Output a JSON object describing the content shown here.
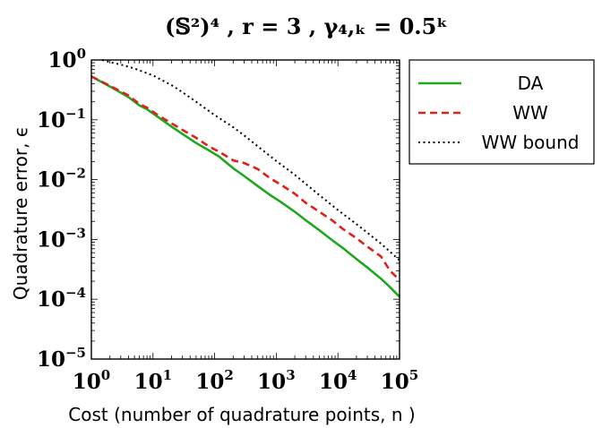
{
  "chart_data": {
    "type": "line",
    "title": "(𝕊²)⁴ , r = 3 , γ₄,ₖ = 0.5ᵏ",
    "xlabel": "Cost (number of quadrature points, n )",
    "ylabel": "Quadrature error, ϵ",
    "xscale": "log",
    "yscale": "log",
    "xlim": [
      1,
      100000
    ],
    "ylim": [
      1e-05,
      1
    ],
    "x_ticks": [
      {
        "value": 1,
        "label_base": "10",
        "label_exp": "0"
      },
      {
        "value": 10,
        "label_base": "10",
        "label_exp": "1"
      },
      {
        "value": 100,
        "label_base": "10",
        "label_exp": "2"
      },
      {
        "value": 1000,
        "label_base": "10",
        "label_exp": "3"
      },
      {
        "value": 10000,
        "label_base": "10",
        "label_exp": "4"
      },
      {
        "value": 100000,
        "label_base": "10",
        "label_exp": "5"
      }
    ],
    "y_ticks": [
      {
        "value": 1,
        "label_base": "10",
        "label_exp": "0"
      },
      {
        "value": 0.1,
        "label_base": "10",
        "label_exp": "−1"
      },
      {
        "value": 0.01,
        "label_base": "10",
        "label_exp": "−2"
      },
      {
        "value": 0.001,
        "label_base": "10",
        "label_exp": "−3"
      },
      {
        "value": 0.0001,
        "label_base": "10",
        "label_exp": "−4"
      },
      {
        "value": 1e-05,
        "label_base": "10",
        "label_exp": "−5"
      }
    ],
    "legend_position": "outside-right-top",
    "series": [
      {
        "name": "DA",
        "color": "#1fa81f",
        "dash": "solid",
        "x": [
          1,
          2,
          4,
          6,
          8,
          12,
          20,
          30,
          50,
          80,
          120,
          200,
          300,
          500,
          800,
          1200,
          2000,
          3000,
          5000,
          8000,
          12000,
          20000,
          30000,
          50000,
          70000,
          100000
        ],
        "y": [
          0.53,
          0.36,
          0.24,
          0.175,
          0.15,
          0.112,
          0.077,
          0.058,
          0.041,
          0.031,
          0.024,
          0.0155,
          0.0115,
          0.0078,
          0.0055,
          0.0042,
          0.0029,
          0.0021,
          0.00142,
          0.00098,
          0.00072,
          0.00047,
          0.00034,
          0.00022,
          0.00016,
          0.00011
        ]
      },
      {
        "name": "WW",
        "color": "#e0201b",
        "dash": "dashed",
        "x": [
          1,
          2,
          4,
          6,
          8,
          12,
          20,
          30,
          50,
          80,
          120,
          200,
          300,
          500,
          800,
          1200,
          2000,
          3000,
          5000,
          8000,
          12000,
          20000,
          30000,
          50000,
          70000,
          100000
        ],
        "y": [
          0.53,
          0.37,
          0.255,
          0.185,
          0.16,
          0.12,
          0.087,
          0.068,
          0.05,
          0.036,
          0.029,
          0.021,
          0.019,
          0.015,
          0.0105,
          0.0082,
          0.0058,
          0.0041,
          0.0029,
          0.0021,
          0.0015,
          0.00105,
          0.00076,
          0.00052,
          0.0003,
          0.00021
        ]
      },
      {
        "name": "WW bound",
        "color": "#000000",
        "dash": "dotted",
        "x": [
          1.5,
          2,
          3,
          5,
          10,
          20,
          30,
          50,
          100,
          200,
          300,
          500,
          1000,
          2000,
          3000,
          5000,
          10000,
          20000,
          30000,
          50000,
          100000
        ],
        "y": [
          1.0,
          0.92,
          0.84,
          0.72,
          0.55,
          0.38,
          0.29,
          0.2,
          0.12,
          0.075,
          0.055,
          0.036,
          0.0205,
          0.012,
          0.0085,
          0.0055,
          0.0031,
          0.0018,
          0.0013,
          0.00085,
          0.00045
        ]
      }
    ]
  }
}
